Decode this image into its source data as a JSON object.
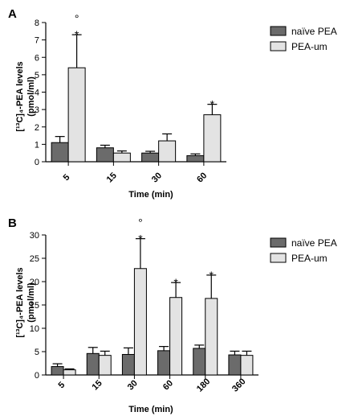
{
  "chart_data": [
    {
      "type": "bar",
      "panel_label": "A",
      "categories": [
        "5",
        "15",
        "30",
        "60"
      ],
      "xlabel": "Time (min)",
      "ylabel_line1": "[¹³C]₄-PEA levels",
      "ylabel_line2": "(pmol/ml)",
      "ylim": [
        0,
        8
      ],
      "yticks": [
        "0",
        "1",
        "2",
        "3",
        "4",
        "5",
        "6",
        "7",
        "8"
      ],
      "legend_position": "top-right",
      "series": [
        {
          "name": "naïve PEA",
          "color": "#6b6b6b",
          "values": [
            1.1,
            0.8,
            0.5,
            0.35
          ],
          "errors": [
            0.35,
            0.15,
            0.1,
            0.1
          ]
        },
        {
          "name": "PEA-um",
          "color": "#e3e3e3",
          "values": [
            5.4,
            0.5,
            1.2,
            2.7
          ],
          "errors": [
            1.9,
            0.12,
            0.4,
            0.6
          ]
        }
      ],
      "annotations": [
        {
          "category": "5",
          "series": "PEA-um",
          "text": "*"
        },
        {
          "category": "5",
          "series": "PEA-um",
          "text": "°"
        },
        {
          "category": "60",
          "series": "PEA-um",
          "text": "*"
        }
      ]
    },
    {
      "type": "bar",
      "panel_label": "B",
      "categories": [
        "5",
        "15",
        "30",
        "60",
        "180",
        "360"
      ],
      "xlabel": "Time (min)",
      "ylabel_line1": "[¹³C]₄-PEA levels",
      "ylabel_line2": "(pmol/ml)",
      "ylim": [
        0,
        30
      ],
      "yticks": [
        "0",
        "5",
        "10",
        "15",
        "20",
        "25",
        "30"
      ],
      "legend_position": "top-right",
      "series": [
        {
          "name": "naïve PEA",
          "color": "#6b6b6b",
          "values": [
            1.8,
            4.6,
            4.4,
            5.2,
            5.7,
            4.3
          ],
          "errors": [
            0.6,
            1.3,
            1.4,
            0.9,
            0.7,
            0.8
          ]
        },
        {
          "name": "PEA-um",
          "color": "#e3e3e3",
          "values": [
            1.1,
            4.2,
            22.8,
            16.6,
            16.4,
            4.2
          ],
          "errors": [
            0.2,
            0.9,
            6.4,
            3.2,
            5.0,
            0.9
          ]
        }
      ],
      "annotations": [
        {
          "category": "30",
          "series": "PEA-um",
          "text": "*"
        },
        {
          "category": "30",
          "series": "PEA-um",
          "text": "°"
        },
        {
          "category": "60",
          "series": "PEA-um",
          "text": "*"
        },
        {
          "category": "180",
          "series": "PEA-um",
          "text": "*"
        }
      ]
    }
  ]
}
